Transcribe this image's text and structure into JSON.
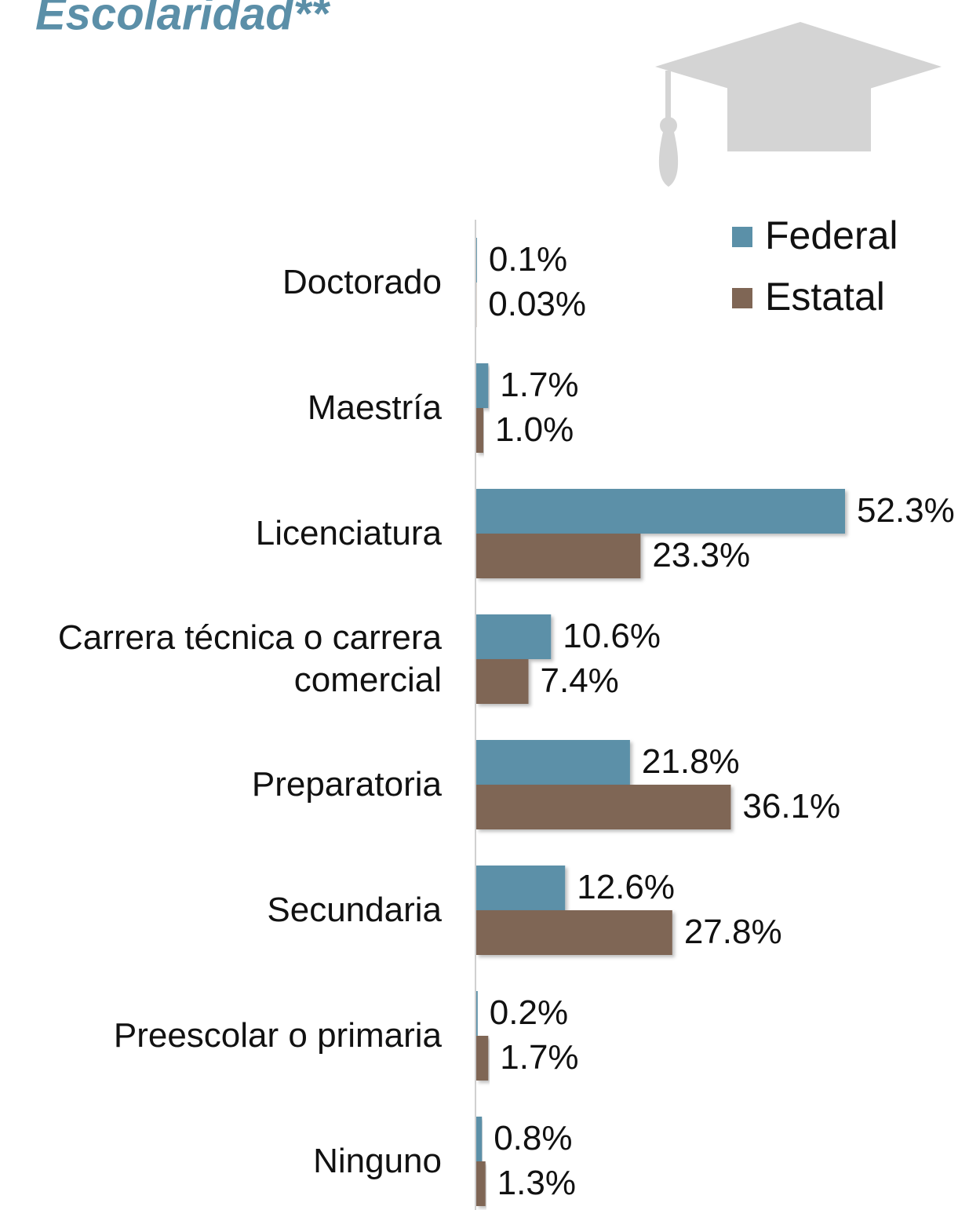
{
  "chart_data": {
    "type": "bar",
    "orientation": "horizontal",
    "title": "Escolaridad**",
    "categories": [
      "Doctorado",
      "Maestría",
      "Licenciatura",
      "Carrera técnica o carrera comercial",
      "Preparatoria",
      "Secundaria",
      "Preescolar o primaria",
      "Ninguno"
    ],
    "series": [
      {
        "name": "Federal",
        "color": "#5b90a8",
        "values": [
          0.1,
          1.7,
          52.3,
          10.6,
          21.8,
          12.6,
          0.2,
          0.8
        ],
        "value_labels": [
          "0.1%",
          "1.7%",
          "52.3%",
          "10.6%",
          "21.8%",
          "12.6%",
          "0.2%",
          "0.8%"
        ]
      },
      {
        "name": "Estatal",
        "color": "#7f6655",
        "values": [
          0.03,
          1.0,
          23.3,
          7.4,
          36.1,
          27.8,
          1.7,
          1.3
        ],
        "value_labels": [
          "0.03%",
          "1.0%",
          "23.3%",
          "7.4%",
          "36.1%",
          "27.8%",
          "1.7%",
          "1.3%"
        ]
      }
    ],
    "legend": "top-right"
  }
}
